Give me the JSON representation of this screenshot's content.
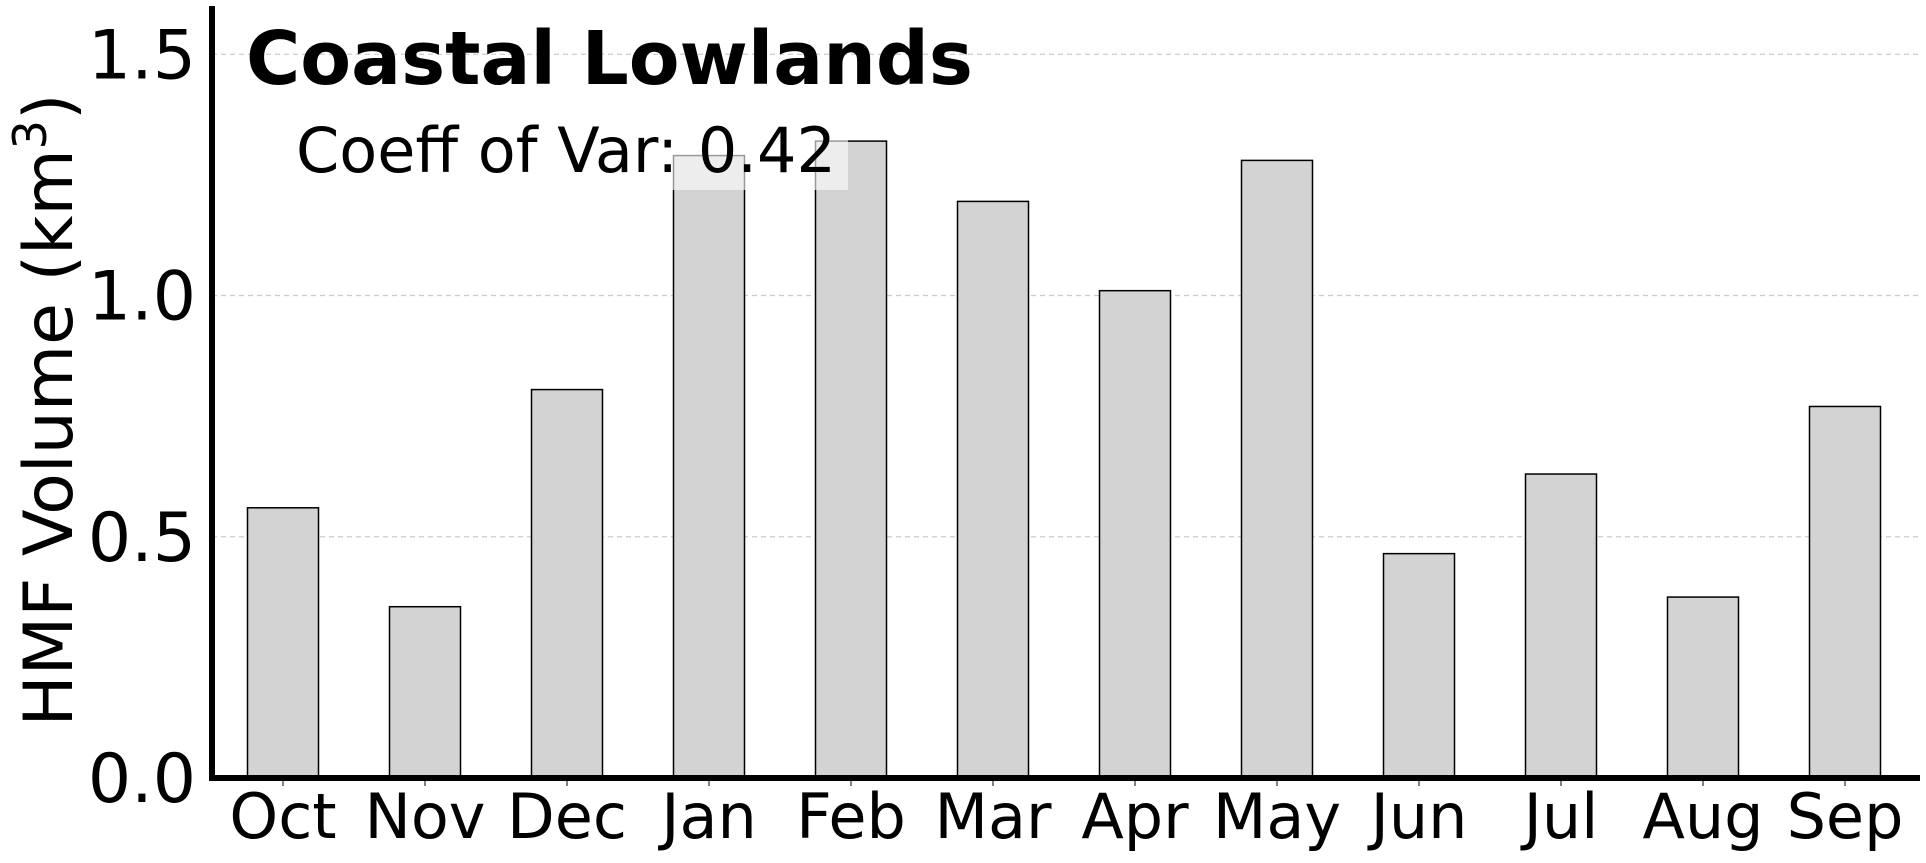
{
  "chart_data": {
    "type": "bar",
    "title": "Coastal Lowlands",
    "annotation": "Coeff of Var: 0.42",
    "ylabel": "HMF Volume (km",
    "ylabel_superscript": "3",
    "ylabel_suffix": ")",
    "xlabel": "",
    "categories": [
      "Oct",
      "Nov",
      "Dec",
      "Jan",
      "Feb",
      "Mar",
      "Apr",
      "May",
      "Jun",
      "Jul",
      "Aug",
      "Sep"
    ],
    "values": [
      0.56,
      0.355,
      0.805,
      1.29,
      1.32,
      1.195,
      1.01,
      1.28,
      0.465,
      0.63,
      0.375,
      0.77
    ],
    "ylim": [
      0,
      1.6
    ],
    "yticks": [
      0.0,
      0.5,
      1.0,
      1.5
    ],
    "ytick_labels": [
      "0.0",
      "0.5",
      "1.0",
      "1.5"
    ],
    "grid": "horizontal-dashed",
    "legend": "none",
    "colors": {
      "bar_fill": "#d3d3d3",
      "bar_edge": "#000000",
      "grid": "#cccccc",
      "axis": "#000000",
      "text": "#000000",
      "annotation_box": "#ffffff"
    }
  }
}
